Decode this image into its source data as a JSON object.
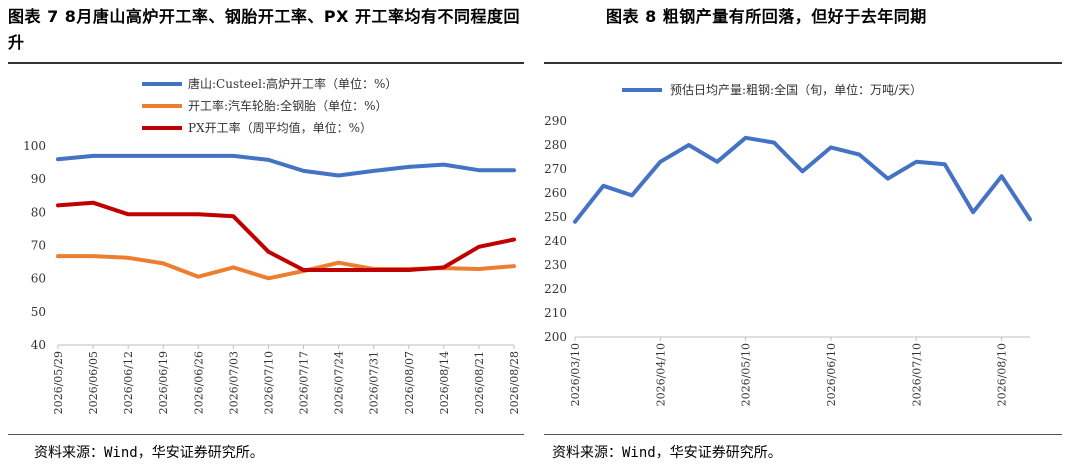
{
  "chart_data": [
    {
      "type": "line",
      "title": "图表 7 8月唐山高炉开工率、钢胎开工率、PX 开工率均有不同程度回升",
      "categories": [
        "2026/05/29",
        "2026/06/05",
        "2026/06/12",
        "2026/06/19",
        "2026/06/26",
        "2026/07/03",
        "2026/07/10",
        "2026/07/17",
        "2026/07/24",
        "2026/07/31",
        "2026/08/07",
        "2026/08/14",
        "2026/08/21",
        "2026/08/28"
      ],
      "ylim": [
        40,
        100
      ],
      "yticks": [
        40,
        50,
        60,
        70,
        80,
        90,
        100
      ],
      "series": [
        {
          "name": "唐山:Custeel:高炉开工率（单位：%）",
          "color": "#4472C4",
          "values": [
            96,
            97,
            97,
            97,
            97,
            97,
            95.8,
            92.5,
            91.1,
            92.5,
            93.7,
            94.4,
            92.7,
            92.7
          ]
        },
        {
          "name": "开工率:汽车轮胎:全钢胎（单位：%）",
          "color": "#ED7D31",
          "values": [
            66.8,
            66.8,
            66.3,
            64.6,
            60.6,
            63.4,
            60.1,
            62.3,
            64.8,
            62.9,
            62.9,
            63.2,
            62.9,
            63.8
          ]
        },
        {
          "name": "PX开工率（周平均值，单位：%）",
          "color": "#C00000",
          "values": [
            82.1,
            82.9,
            79.4,
            79.4,
            79.4,
            78.8,
            68.1,
            62.6,
            62.6,
            62.6,
            62.6,
            63.4,
            69.6,
            71.8
          ]
        }
      ],
      "legend_position": "top",
      "source": "资料来源：Wind，华安证券研究所。"
    },
    {
      "type": "line",
      "title": "图表 8 粗钢产量有所回落，但好于去年同期",
      "x": [
        "2026/03/10",
        "2026/03/20",
        "2026/03/31",
        "2026/04/10",
        "2026/04/20",
        "2026/04/30",
        "2026/05/10",
        "2026/05/20",
        "2026/05/31",
        "2026/06/10",
        "2026/06/20",
        "2026/06/30",
        "2026/07/10",
        "2026/07/20",
        "2026/07/31",
        "2026/08/10",
        "2026/08/20"
      ],
      "xticks": [
        "2026/03/10",
        "2026/04/10",
        "2026/05/10",
        "2026/06/10",
        "2026/07/10",
        "2026/08/10"
      ],
      "ylim": [
        200,
        290
      ],
      "yticks": [
        200,
        210,
        220,
        230,
        240,
        250,
        260,
        270,
        280,
        290
      ],
      "series": [
        {
          "name": "预估日均产量:粗钢:全国（旬，单位：万吨/天）",
          "color": "#4472C4",
          "values": [
            248,
            263,
            259,
            273,
            280,
            273,
            283,
            281,
            269,
            279,
            276,
            266,
            273,
            272,
            252,
            267,
            249
          ]
        }
      ],
      "legend_position": "top",
      "source": "资料来源：Wind，华安证券研究所。"
    }
  ]
}
